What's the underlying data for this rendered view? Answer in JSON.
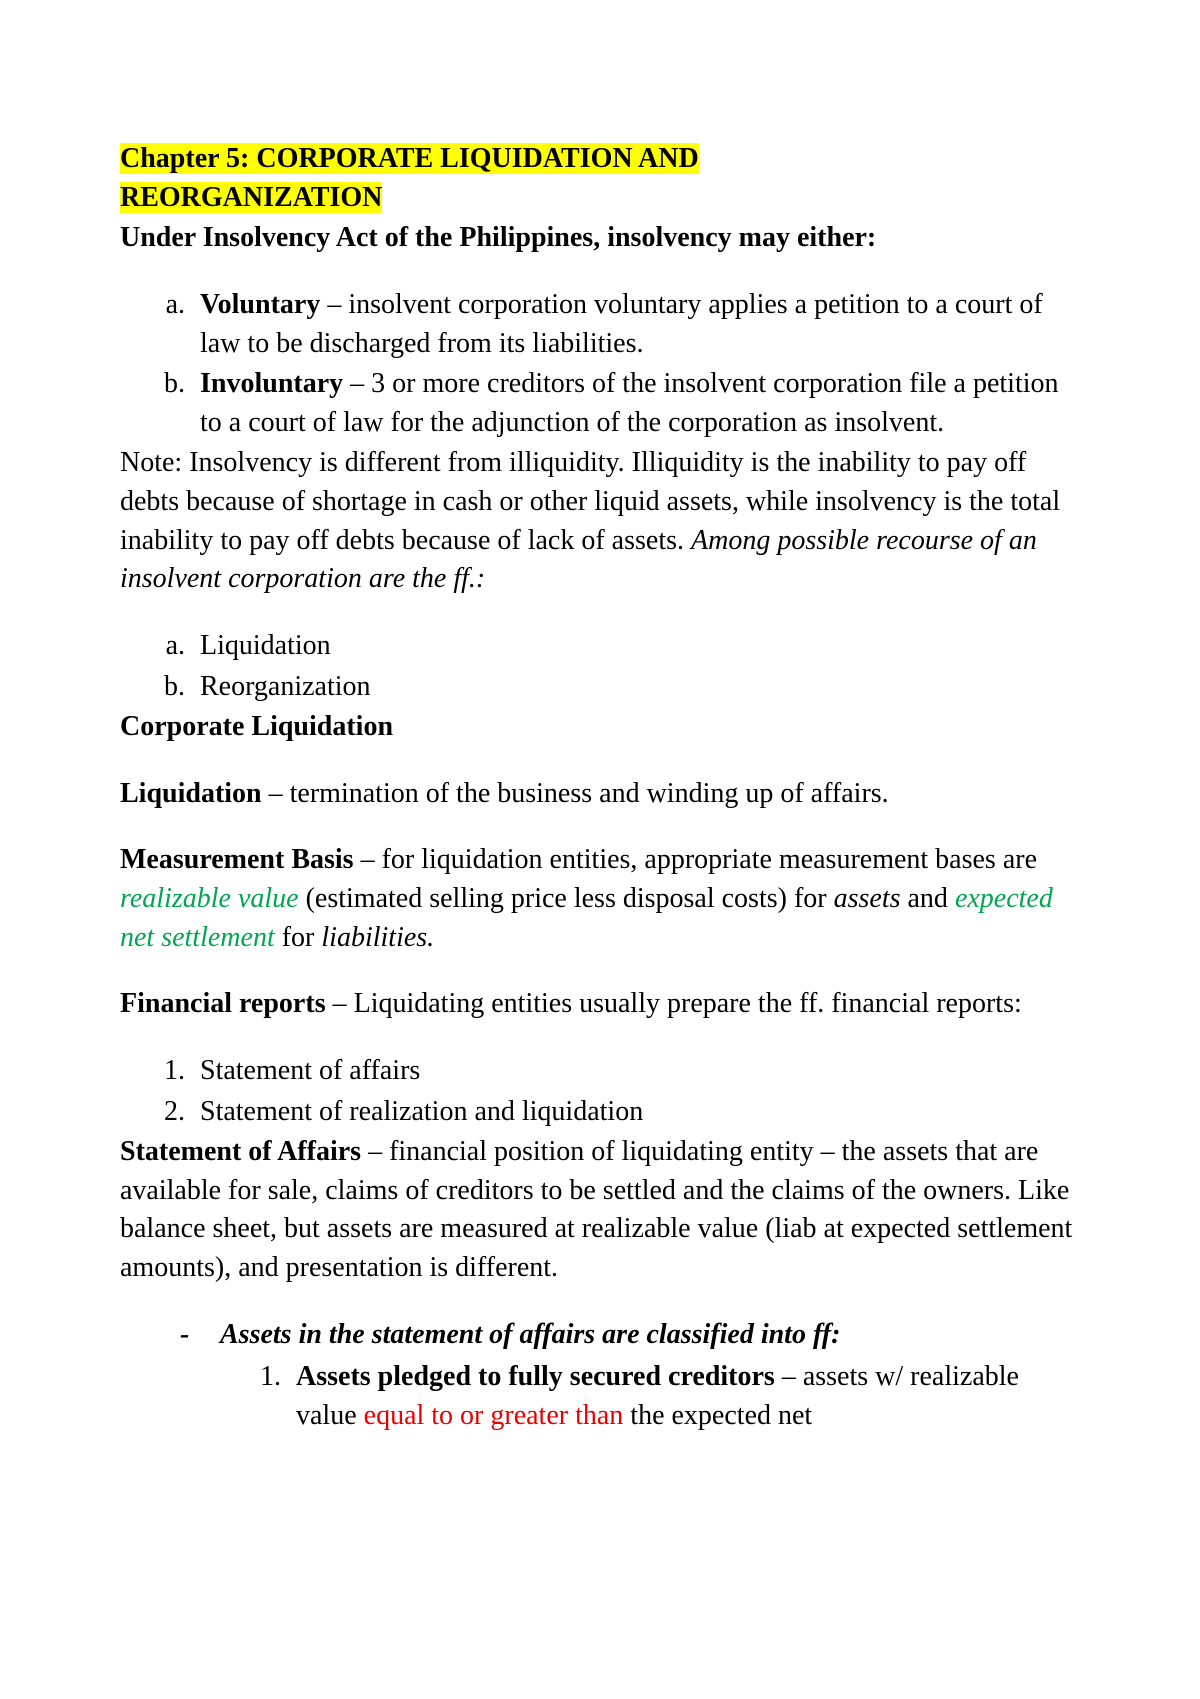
{
  "colors": {
    "highlight_bg": "#ffff00",
    "text": "#000000",
    "green": "#00a651",
    "red": "#e60000",
    "page_bg": "#ffffff"
  },
  "typography": {
    "font_family": "Times New Roman",
    "base_font_size_pt": 21,
    "line_height": 1.38
  },
  "title": {
    "line1": "Chapter 5: CORPORATE LIQUIDATION AND ",
    "line2": "REORGANIZATION"
  },
  "intro": {
    "heading": "Under Insolvency Act of the Philippines, insolvency may either:"
  },
  "insolvency_list": [
    {
      "term": "Voluntary",
      "desc": " – insolvent corporation voluntary applies a petition to a court of law to be discharged from its liabilities."
    },
    {
      "term": "Involuntary",
      "desc": " – 3 or more creditors of the insolvent corporation file a petition to a court of law for the adjunction of the corporation as insolvent."
    }
  ],
  "note": {
    "plain": "Note: Insolvency is different from illiquidity. Illiquidity is the inability to pay off debts because of shortage in cash or other liquid assets, while insolvency is the total inability to pay off debts because of lack of assets. ",
    "italic": "Among possible recourse of an insolvent corporation are the ff.:"
  },
  "recourse_list": [
    "Liquidation",
    "Reorganization"
  ],
  "corporate_liquidation_heading": "Corporate Liquidation",
  "liquidation": {
    "term": "Liquidation",
    "desc": " – termination of the business and winding up of affairs."
  },
  "measurement": {
    "term": "Measurement Basis",
    "lead": " – for liquidation entities, appropriate measurement bases are ",
    "green1": "realizable value",
    "mid1": " (estimated selling price less disposal costs) for ",
    "italic1": "assets",
    "mid2": " and ",
    "green2": "expected net settlement",
    "mid3": " for ",
    "italic2": "liabilities."
  },
  "financial_reports": {
    "term": "Financial reports",
    "desc": " – Liquidating entities usually prepare the ff. financial reports:"
  },
  "reports_list": [
    "Statement of affairs",
    "Statement of realization and liquidation"
  ],
  "soa": {
    "term": "Statement of Affairs",
    "desc": " – financial position of liquidating entity – the assets that are available for sale, claims of creditors to be settled and the claims of the owners. Like balance sheet, but assets are measured at realizable value (liab at expected settlement amounts), and presentation is different."
  },
  "assets_classified_heading": "Assets in the statement of affairs are classified into ff:",
  "asset_class": {
    "term": "Assets pledged to fully secured creditors",
    "lead": " – assets w/ realizable value ",
    "red": "equal to or greater than",
    "tail": " the expected net"
  }
}
